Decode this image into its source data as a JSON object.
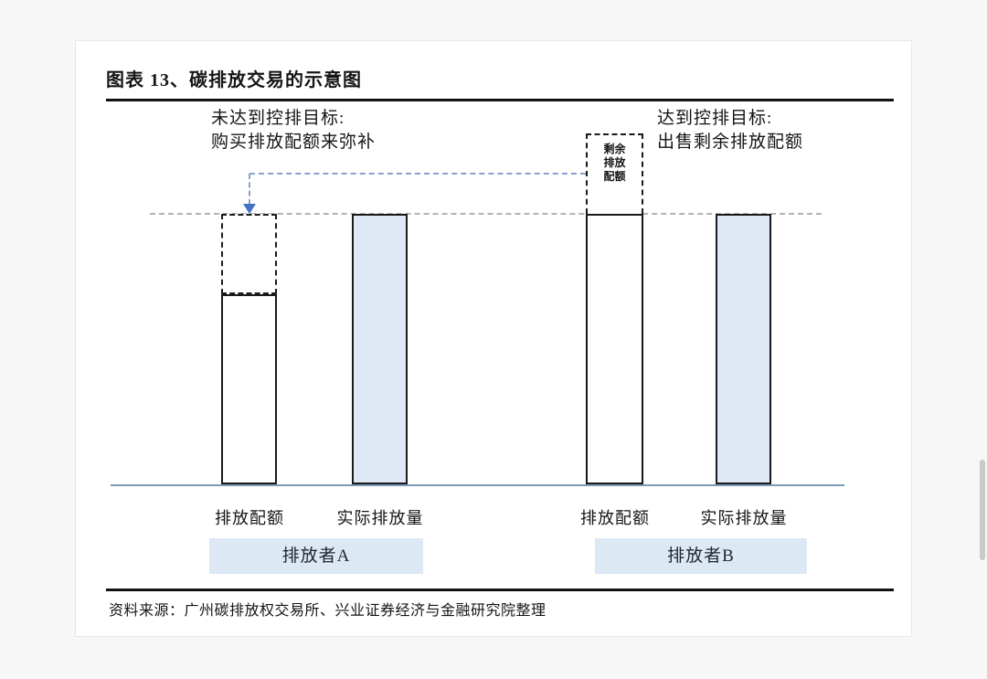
{
  "figure": {
    "title": "图表 13、碳排放交易的示意图",
    "source": "资料来源：广州碳排放权交易所、兴业证券经济与金融研究院整理"
  },
  "annotations": {
    "emitter_a": [
      "未达到控排目标:",
      "购买排放配额来弥补"
    ],
    "emitter_b": [
      "达到控排目标:",
      "出售剩余排放配额"
    ]
  },
  "surplus_box": [
    "剩余",
    "排放",
    "配额"
  ],
  "emitters": [
    {
      "name": "排放者A",
      "quota_label": "排放配额",
      "actual_label": "实际排放量"
    },
    {
      "name": "排放者B",
      "quota_label": "排放配额",
      "actual_label": "实际排放量"
    }
  ],
  "diagram": {
    "type": "schematic-bars",
    "cap_line": "dashed gray line marking the emission-control target level",
    "bars": [
      {
        "emitter": "排放者A",
        "label": "排放配额",
        "fill": "white",
        "style": "solid lower part with dashed extension up to cap line (purchased allowance)"
      },
      {
        "emitter": "排放者A",
        "label": "实际排放量",
        "fill": "light-blue",
        "style": "solid, top at cap line"
      },
      {
        "emitter": "排放者B",
        "label": "排放配额",
        "fill": "white",
        "style": "solid, top at cap line, dashed surplus box (剩余排放配额) stacked above"
      },
      {
        "emitter": "排放者B",
        "label": "实际排放量",
        "fill": "light-blue",
        "style": "solid, top at cap line"
      }
    ],
    "arrow": "blue dashed connector from surplus box of 排放者B down into dashed quota gap of 排放者A"
  },
  "colors": {
    "bar_fill_blue": "#dfe9f6",
    "group_box_fill": "#dde8f5",
    "arrow_blue": "#4472c4",
    "connector_blue": "#8aa0d0",
    "cap_line_gray": "#b3b3b3",
    "baseline_blue": "#7e99b4",
    "rule_black": "#111111"
  }
}
